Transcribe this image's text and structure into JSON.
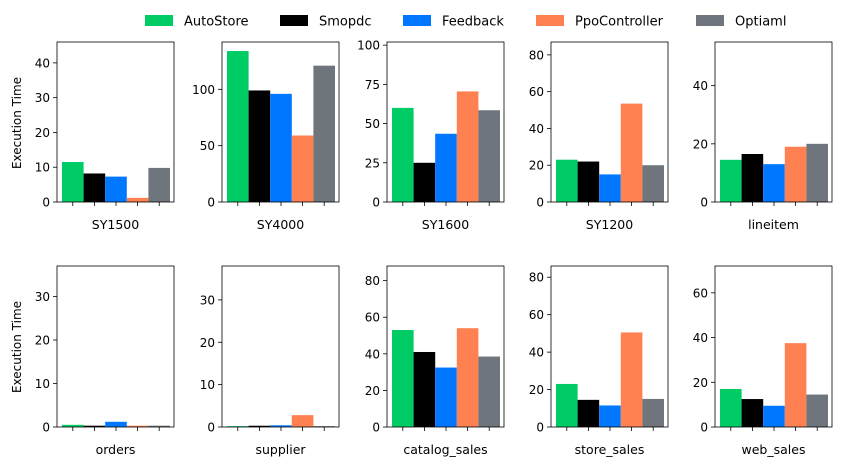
{
  "chart_data": {
    "type": "bar",
    "ylabel": "Execution Time",
    "series": [
      {
        "name": "AutoStore",
        "color": "#00cc66"
      },
      {
        "name": "Smopdc",
        "color": "#000000"
      },
      {
        "name": "Feedback",
        "color": "#0077ff"
      },
      {
        "name": "PpoController",
        "color": "#ff8050"
      },
      {
        "name": "Optiaml",
        "color": "#6e757c"
      }
    ],
    "panels": [
      {
        "category": "SY1500",
        "values": [
          11.5,
          8.2,
          7.3,
          1.2,
          9.8
        ],
        "ylim": [
          0,
          46
        ],
        "yticks": [
          0,
          10,
          20,
          30,
          40
        ]
      },
      {
        "category": "SY4000",
        "values": [
          134,
          99,
          96,
          59,
          121
        ],
        "ylim": [
          0,
          142
        ],
        "yticks": [
          0,
          50,
          100
        ]
      },
      {
        "category": "SY1600",
        "values": [
          60,
          25,
          43.5,
          70.5,
          58.5
        ],
        "ylim": [
          0,
          102
        ],
        "yticks": [
          0,
          25,
          50,
          75,
          100
        ]
      },
      {
        "category": "SY1200",
        "values": [
          23,
          22,
          15,
          53.5,
          20
        ],
        "ylim": [
          0,
          87
        ],
        "yticks": [
          0,
          20,
          40,
          60,
          80
        ]
      },
      {
        "category": "lineitem",
        "values": [
          14.5,
          16.5,
          13,
          19,
          20
        ],
        "ylim": [
          0,
          55
        ],
        "yticks": [
          0,
          20,
          40
        ]
      },
      {
        "category": "orders",
        "values": [
          0.5,
          0.3,
          1.2,
          0.3,
          0.3
        ],
        "ylim": [
          0,
          37
        ],
        "yticks": [
          0,
          10,
          20,
          30
        ]
      },
      {
        "category": "supplier",
        "values": [
          0.2,
          0.3,
          0.4,
          2.8,
          0.2
        ],
        "ylim": [
          0,
          38
        ],
        "yticks": [
          0,
          10,
          20,
          30
        ]
      },
      {
        "category": "catalog_sales",
        "values": [
          53,
          41,
          32.5,
          54,
          38.5
        ],
        "ylim": [
          0,
          88
        ],
        "yticks": [
          0,
          20,
          40,
          60,
          80
        ]
      },
      {
        "category": "store_sales",
        "values": [
          23,
          14.5,
          11.5,
          50.5,
          15
        ],
        "ylim": [
          0,
          86
        ],
        "yticks": [
          0,
          20,
          40,
          60,
          80
        ]
      },
      {
        "category": "web_sales",
        "values": [
          17,
          12.5,
          9.5,
          37.5,
          14.5
        ],
        "ylim": [
          0,
          72
        ],
        "yticks": [
          0,
          20,
          40,
          60
        ]
      }
    ]
  }
}
